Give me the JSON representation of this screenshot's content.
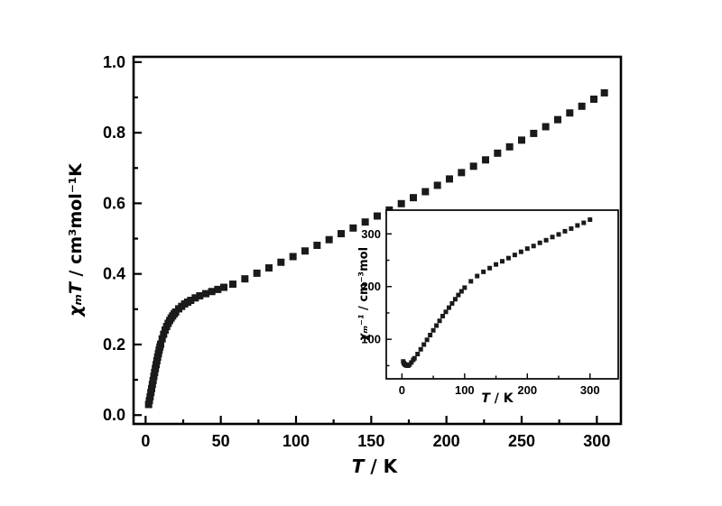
{
  "figure": {
    "background": "#ffffff",
    "axis_color": "#000000",
    "marker_color": "#1a1a1a"
  },
  "chart_data": [
    {
      "id": "main",
      "type": "scatter",
      "marker": "square",
      "title": "",
      "xlabel_var": "T",
      "xlabel_rest": " / K",
      "ylabel_var": "χₘT",
      "ylabel_rest": " / cm³mol⁻¹K",
      "xlim": [
        -8,
        316
      ],
      "ylim": [
        -0.025,
        1.015
      ],
      "xticks": [
        0,
        50,
        100,
        150,
        200,
        250,
        300
      ],
      "xtick_labels": [
        "0",
        "50",
        "100",
        "150",
        "200",
        "250",
        "300"
      ],
      "xminor": [
        25,
        75,
        125,
        175,
        225,
        275
      ],
      "yticks": [
        0,
        0.2,
        0.4,
        0.6,
        0.8,
        1.0
      ],
      "ytick_labels": [
        "0.0",
        "0.2",
        "0.4",
        "0.6",
        "0.8",
        "1.0"
      ],
      "yminor": [
        0.1,
        0.3,
        0.5,
        0.7,
        0.9
      ],
      "legend": "none",
      "grid": false,
      "points": [
        [
          2,
          0.03
        ],
        [
          2.5,
          0.041
        ],
        [
          3,
          0.052
        ],
        [
          3.5,
          0.064
        ],
        [
          4,
          0.075
        ],
        [
          4.5,
          0.087
        ],
        [
          5,
          0.098
        ],
        [
          5.5,
          0.11
        ],
        [
          6,
          0.121
        ],
        [
          6.5,
          0.132
        ],
        [
          7,
          0.143
        ],
        [
          7.5,
          0.154
        ],
        [
          8,
          0.164
        ],
        [
          8.5,
          0.174
        ],
        [
          9,
          0.184
        ],
        [
          9.5,
          0.193
        ],
        [
          10,
          0.201
        ],
        [
          11,
          0.216
        ],
        [
          12,
          0.229
        ],
        [
          13,
          0.241
        ],
        [
          14,
          0.251
        ],
        [
          15,
          0.26
        ],
        [
          16,
          0.268
        ],
        [
          17,
          0.275
        ],
        [
          18,
          0.281
        ],
        [
          19,
          0.287
        ],
        [
          20,
          0.292
        ],
        [
          22,
          0.301
        ],
        [
          24,
          0.308
        ],
        [
          26,
          0.315
        ],
        [
          28,
          0.32
        ],
        [
          30,
          0.325
        ],
        [
          33,
          0.332
        ],
        [
          36,
          0.338
        ],
        [
          40,
          0.344
        ],
        [
          44,
          0.35
        ],
        [
          48,
          0.356
        ],
        [
          52,
          0.362
        ],
        [
          58,
          0.371
        ],
        [
          66,
          0.386
        ],
        [
          74,
          0.402
        ],
        [
          82,
          0.417
        ],
        [
          90,
          0.433
        ],
        [
          98,
          0.449
        ],
        [
          106,
          0.465
        ],
        [
          114,
          0.481
        ],
        [
          122,
          0.497
        ],
        [
          130,
          0.514
        ],
        [
          138,
          0.53
        ],
        [
          146,
          0.547
        ],
        [
          154,
          0.564
        ],
        [
          162,
          0.581
        ],
        [
          170,
          0.599
        ],
        [
          178,
          0.616
        ],
        [
          186,
          0.633
        ],
        [
          194,
          0.651
        ],
        [
          202,
          0.669
        ],
        [
          210,
          0.687
        ],
        [
          218,
          0.705
        ],
        [
          226,
          0.723
        ],
        [
          234,
          0.742
        ],
        [
          242,
          0.76
        ],
        [
          250,
          0.779
        ],
        [
          258,
          0.798
        ],
        [
          266,
          0.817
        ],
        [
          274,
          0.837
        ],
        [
          282,
          0.856
        ],
        [
          290,
          0.875
        ],
        [
          298,
          0.895
        ],
        [
          305,
          0.913
        ]
      ]
    },
    {
      "id": "inset",
      "type": "scatter",
      "marker": "square",
      "title": "",
      "xlabel_var": "T",
      "xlabel_rest": " / K",
      "ylabel_var": "χₘ⁻¹",
      "ylabel_rest": " / cm⁻³mol",
      "xlim": [
        -25,
        345
      ],
      "ylim": [
        25,
        345
      ],
      "xticks": [
        0,
        100,
        200,
        300
      ],
      "xtick_labels": [
        "0",
        "100",
        "200",
        "300"
      ],
      "xminor": [
        50,
        150,
        250
      ],
      "yticks": [
        100,
        200,
        300
      ],
      "ytick_labels": [
        "100",
        "200",
        "300"
      ],
      "yminor": [
        50,
        150,
        250
      ],
      "legend": "none",
      "grid": false,
      "points": [
        [
          2,
          58
        ],
        [
          3,
          55
        ],
        [
          4,
          53
        ],
        [
          5,
          52
        ],
        [
          6,
          51
        ],
        [
          8,
          50
        ],
        [
          10,
          50
        ],
        [
          12,
          52
        ],
        [
          15,
          56
        ],
        [
          18,
          61
        ],
        [
          20,
          64
        ],
        [
          25,
          72
        ],
        [
          30,
          81
        ],
        [
          35,
          90
        ],
        [
          40,
          99
        ],
        [
          45,
          108
        ],
        [
          50,
          117
        ],
        [
          55,
          126
        ],
        [
          60,
          135
        ],
        [
          65,
          144
        ],
        [
          70,
          152
        ],
        [
          75,
          160
        ],
        [
          80,
          168
        ],
        [
          85,
          176
        ],
        [
          90,
          184
        ],
        [
          95,
          191
        ],
        [
          100,
          198
        ],
        [
          110,
          210
        ],
        [
          120,
          220
        ],
        [
          130,
          228
        ],
        [
          140,
          235
        ],
        [
          150,
          242
        ],
        [
          160,
          248
        ],
        [
          170,
          254
        ],
        [
          180,
          260
        ],
        [
          190,
          266
        ],
        [
          200,
          272
        ],
        [
          210,
          277
        ],
        [
          220,
          283
        ],
        [
          230,
          288
        ],
        [
          240,
          294
        ],
        [
          250,
          299
        ],
        [
          260,
          305
        ],
        [
          270,
          310
        ],
        [
          280,
          316
        ],
        [
          290,
          321
        ],
        [
          300,
          327
        ]
      ]
    }
  ]
}
